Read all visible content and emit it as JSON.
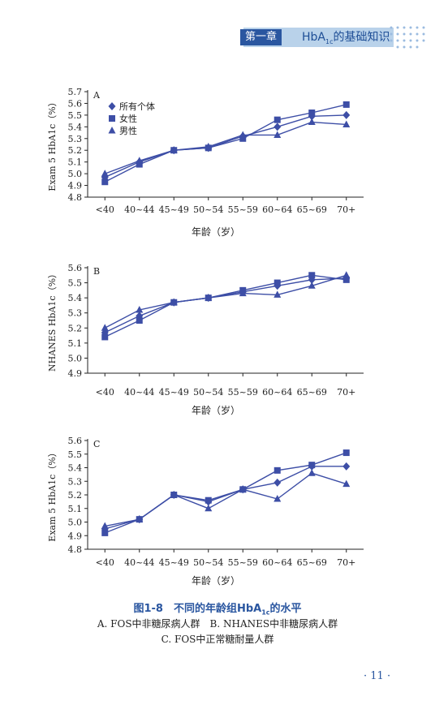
{
  "header": {
    "chapter": "第一章",
    "title_prefix": "HbA",
    "title_sub": "1c",
    "title_suffix": "的基础知识"
  },
  "caption": {
    "title_prefix": "图1-8　不同的年龄组HbA",
    "title_sub": "1c",
    "title_suffix": "的水平",
    "line1": "A. FOS中非糖尿病人群　B. NHANES中非糖尿病人群",
    "line2": "C. FOS中正常糖耐量人群"
  },
  "page_number": "· 11 ·",
  "colors": {
    "series": "#3d4ea6",
    "accent": "#2a56a0",
    "header_band": "#b9d2ea"
  },
  "chart_data": [
    {
      "type": "line",
      "panel_label": "A",
      "ylabel": "Exam 5 HbA1c（%）",
      "xlabel": "年龄（岁）",
      "ylim": [
        4.8,
        5.7
      ],
      "y_ticks": [
        "4.8",
        "4.9",
        "5.0",
        "5.1",
        "5.2",
        "5.3",
        "5.4",
        "5.5",
        "5.6",
        "5.7"
      ],
      "categories": [
        "<40",
        "40~44",
        "45~49",
        "50~54",
        "55~59",
        "60~64",
        "65~69",
        "70+"
      ],
      "legend": "top-left",
      "series": [
        {
          "name": "所有个体",
          "marker": "diamond",
          "values": [
            4.97,
            5.1,
            5.2,
            5.22,
            5.32,
            5.4,
            5.49,
            5.5
          ]
        },
        {
          "name": "女性",
          "marker": "square",
          "values": [
            4.93,
            5.08,
            5.2,
            5.22,
            5.3,
            5.46,
            5.52,
            5.59
          ]
        },
        {
          "name": "男性",
          "marker": "triangle",
          "values": [
            5.0,
            5.11,
            5.2,
            5.23,
            5.33,
            5.33,
            5.44,
            5.42
          ]
        }
      ]
    },
    {
      "type": "line",
      "panel_label": "B",
      "ylabel": "NHANES HbA1c（%）",
      "xlabel": "年龄（岁）",
      "ylim": [
        4.9,
        5.6
      ],
      "y_ticks": [
        "4.9",
        "5.0",
        "5.1",
        "5.2",
        "5.3",
        "5.4",
        "5.5",
        "5.6"
      ],
      "categories": [
        "<40",
        "40~44",
        "45~49",
        "50~54",
        "55~59",
        "60~64",
        "65~69",
        "70+"
      ],
      "legend": "none",
      "series": [
        {
          "marker": "diamond",
          "values": [
            5.17,
            5.28,
            5.37,
            5.4,
            5.44,
            5.48,
            5.52,
            5.53
          ]
        },
        {
          "marker": "square",
          "values": [
            5.14,
            5.25,
            5.37,
            5.4,
            5.45,
            5.5,
            5.55,
            5.52
          ]
        },
        {
          "marker": "triangle",
          "values": [
            5.2,
            5.32,
            5.37,
            5.4,
            5.43,
            5.42,
            5.48,
            5.55
          ]
        }
      ]
    },
    {
      "type": "line",
      "panel_label": "C",
      "ylabel": "Exam 5 HbA1c（%）",
      "xlabel": "年龄（岁）",
      "ylim": [
        4.8,
        5.6
      ],
      "y_ticks": [
        "4.8",
        "4.9",
        "5.0",
        "5.1",
        "5.2",
        "5.3",
        "5.4",
        "5.5",
        "5.6"
      ],
      "categories": [
        "<40",
        "40~44",
        "45~49",
        "50~54",
        "55~59",
        "60~64",
        "65~69",
        "70+"
      ],
      "legend": "none",
      "series": [
        {
          "marker": "diamond",
          "values": [
            4.95,
            5.02,
            5.2,
            5.15,
            5.24,
            5.29,
            5.41,
            5.41
          ]
        },
        {
          "marker": "square",
          "values": [
            4.92,
            5.02,
            5.2,
            5.16,
            5.24,
            5.38,
            5.42,
            5.51
          ]
        },
        {
          "marker": "triangle",
          "values": [
            4.97,
            5.02,
            5.2,
            5.1,
            5.24,
            5.17,
            5.36,
            5.28
          ]
        }
      ]
    }
  ]
}
